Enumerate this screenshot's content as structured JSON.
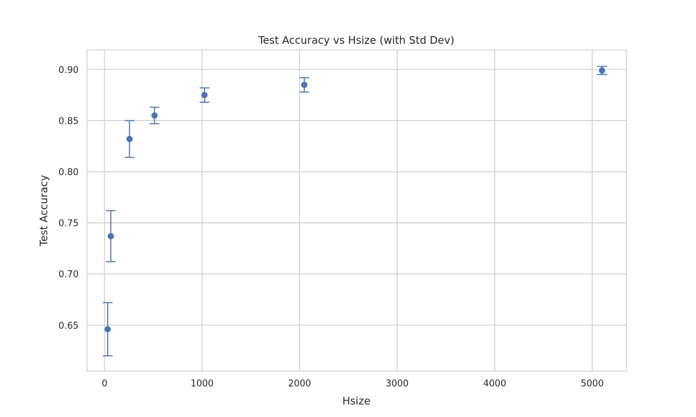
{
  "chart_data": {
    "type": "scatter",
    "title": "Test Accuracy vs Hsize (with Std Dev)",
    "xlabel": "Hsize",
    "ylabel": "Test Accuracy",
    "xlim": [
      -180,
      5350
    ],
    "ylim": [
      0.605,
      0.919
    ],
    "x_ticks": [
      0,
      1000,
      2000,
      3000,
      4000,
      5000
    ],
    "y_ticks": [
      0.65,
      0.7,
      0.75,
      0.8,
      0.85,
      0.9
    ],
    "x_tick_labels": [
      "0",
      "1000",
      "2000",
      "3000",
      "4000",
      "5000"
    ],
    "y_tick_labels": [
      "0.65",
      "0.70",
      "0.75",
      "0.80",
      "0.85",
      "0.90"
    ],
    "grid": true,
    "marker_color": "#4c72b0",
    "series": [
      {
        "x": [
          32,
          64,
          256,
          512,
          1024,
          2048,
          5100
        ],
        "y": [
          0.646,
          0.737,
          0.832,
          0.855,
          0.875,
          0.885,
          0.899
        ],
        "yerr": [
          0.026,
          0.025,
          0.018,
          0.008,
          0.007,
          0.007,
          0.004
        ]
      }
    ]
  }
}
